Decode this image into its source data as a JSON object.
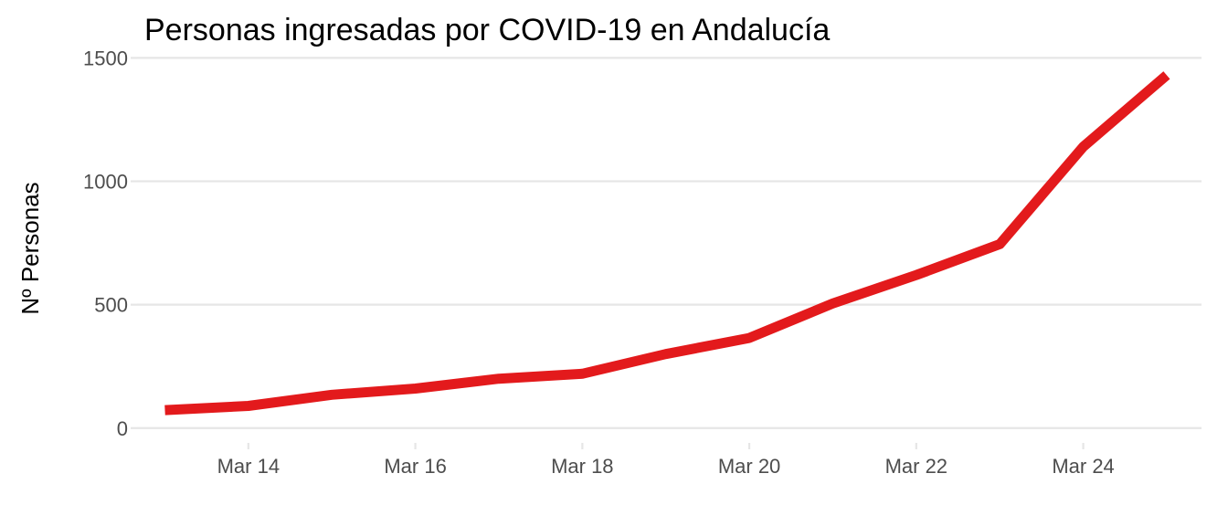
{
  "chart_data": {
    "type": "line",
    "title": "Personas ingresadas por COVID-19 en Andalucía",
    "xlabel": "",
    "ylabel": "Nº Personas",
    "x": [
      "2020-03-13",
      "2020-03-14",
      "2020-03-15",
      "2020-03-16",
      "2020-03-17",
      "2020-03-18",
      "2020-03-19",
      "2020-03-20",
      "2020-03-21",
      "2020-03-22",
      "2020-03-23",
      "2020-03-24",
      "2020-03-25"
    ],
    "series": [
      {
        "values": [
          73,
          90,
          135,
          160,
          200,
          220,
          300,
          365,
          505,
          620,
          745,
          1140,
          1430
        ]
      }
    ],
    "x_ticks": [
      "Mar 14",
      "Mar 16",
      "Mar 18",
      "Mar 20",
      "Mar 22",
      "Mar 24"
    ],
    "y_ticks": [
      0,
      500,
      1000,
      1500
    ],
    "ylim": [
      -60,
      1520
    ],
    "xlim": [
      "2020-03-12T16:00",
      "2020-03-25T10:00"
    ],
    "grid": true,
    "line_color": "#e31a1c"
  }
}
